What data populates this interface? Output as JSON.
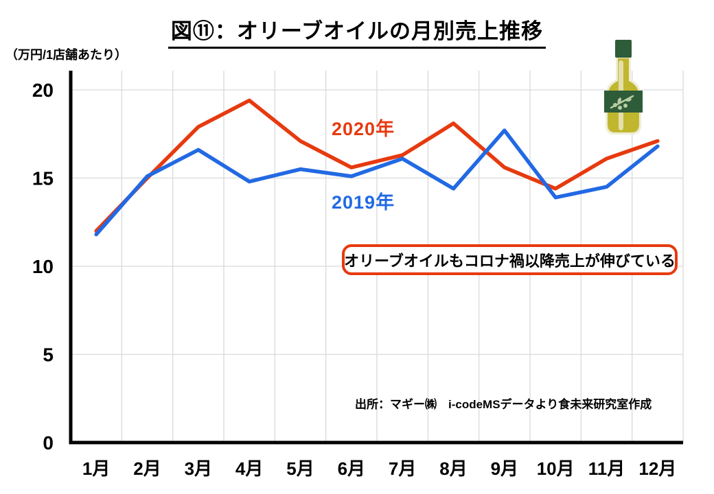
{
  "title": "図⑪：オリーブオイルの月別売上推移",
  "y_axis": {
    "unit_label": "（万円/1店舗あたり）"
  },
  "legend": {
    "label_2020": "2020年",
    "label_2019": "2019年"
  },
  "annotation": {
    "text": "オリーブオイルもコロナ禍以降売上が伸びている"
  },
  "source": "出所：マギー㈱　i-codeMSデータより食未来研究室作成",
  "colors": {
    "red_2020": "#E63A0F",
    "blue_2019": "#2269E3",
    "grid": "#D9D9D9",
    "axis": "#000000",
    "annotation_border": "#E63A0F",
    "bottle_green": "#2E5C38",
    "bottle_yellow": "#C1B72E",
    "bottle_cream": "#EFEDD4",
    "bottle_sprig": "#B9CCA4"
  },
  "chart_data": {
    "type": "line",
    "title": "図⑪：オリーブオイルの月別売上推移",
    "categories": [
      "1月",
      "2月",
      "3月",
      "4月",
      "5月",
      "6月",
      "7月",
      "8月",
      "9月",
      "10月",
      "11月",
      "12月"
    ],
    "series": [
      {
        "name": "2020年",
        "color": "#E63A0F",
        "values": [
          12.0,
          15.0,
          17.9,
          19.4,
          17.1,
          15.6,
          16.3,
          18.1,
          15.6,
          14.4,
          16.1,
          17.1
        ]
      },
      {
        "name": "2019年",
        "color": "#2269E3",
        "values": [
          11.8,
          15.1,
          16.6,
          14.8,
          15.5,
          15.1,
          16.1,
          14.4,
          17.7,
          13.9,
          14.5,
          16.8
        ]
      }
    ],
    "ylabel": "（万円/1店舗あたり）",
    "ylim": [
      0,
      20
    ],
    "yticks": [
      0,
      5,
      10,
      15,
      20
    ],
    "grid": true,
    "legend_position": "inline-labels"
  }
}
